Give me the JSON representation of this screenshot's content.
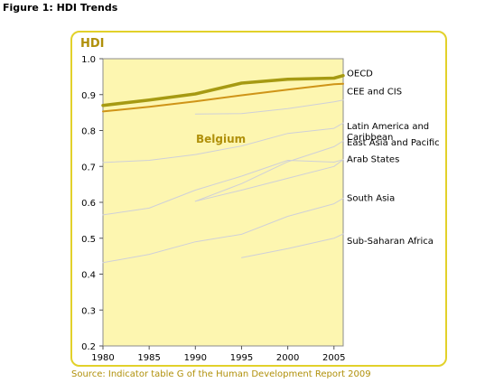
{
  "figure_title": "Figure 1: HDI Trends",
  "source": "Source: Indicator table G of the Human Development Report 2009",
  "colors": {
    "frame": "#e2d12a",
    "plot_bg": "#fdf6b0",
    "accent_text": "#b0900a",
    "oecd": "#a69a12",
    "belgium": "#cf9418",
    "regions": "#cfd0d8"
  },
  "chart_data": {
    "type": "line",
    "title": "HDI",
    "annotation": "Belgium",
    "xlim": [
      1980,
      2006
    ],
    "ylim": [
      0.2,
      1.0
    ],
    "x_ticks": [
      "1980",
      "1985",
      "1990",
      "1995",
      "2000",
      "2005"
    ],
    "y_ticks": [
      "0.2",
      "0.3",
      "0.4",
      "0.5",
      "0.6",
      "0.7",
      "0.8",
      "0.9",
      "1.0"
    ],
    "grid": false,
    "series": [
      {
        "name": "OECD",
        "emphasis": "oecd",
        "labels": [
          "OECD"
        ],
        "label_y": 0.958,
        "points": [
          [
            1980,
            0.87
          ],
          [
            1985,
            0.885
          ],
          [
            1990,
            0.902
          ],
          [
            1995,
            0.932
          ],
          [
            2000,
            0.943
          ],
          [
            2005,
            0.946
          ],
          [
            2006,
            0.953
          ]
        ]
      },
      {
        "name": "Belgium",
        "emphasis": "belgium",
        "labels": [],
        "label_y": null,
        "points": [
          [
            1980,
            0.853
          ],
          [
            1985,
            0.866
          ],
          [
            1990,
            0.881
          ],
          [
            1995,
            0.898
          ],
          [
            2000,
            0.914
          ],
          [
            2005,
            0.929
          ],
          [
            2006,
            0.93
          ]
        ]
      },
      {
        "name": "CEE and CIS",
        "emphasis": "region",
        "labels": [
          "CEE and CIS"
        ],
        "label_y": 0.908,
        "points": [
          [
            1990,
            0.846
          ],
          [
            1995,
            0.847
          ],
          [
            2000,
            0.861
          ],
          [
            2005,
            0.88
          ],
          [
            2006,
            0.885
          ]
        ]
      },
      {
        "name": "Latin America and Caribbean",
        "emphasis": "region",
        "labels": [
          "Latin America and",
          "Caribbean"
        ],
        "label_y": 0.811,
        "points": [
          [
            1980,
            0.711
          ],
          [
            1985,
            0.717
          ],
          [
            1990,
            0.733
          ],
          [
            1995,
            0.757
          ],
          [
            2000,
            0.792
          ],
          [
            2005,
            0.806
          ],
          [
            2006,
            0.821
          ]
        ]
      },
      {
        "name": "East Asia and Pacific",
        "emphasis": "region",
        "labels": [
          "East Asia and Pacific"
        ],
        "label_y": 0.766,
        "points": [
          [
            1990,
            0.603
          ],
          [
            1995,
            0.652
          ],
          [
            2000,
            0.713
          ],
          [
            2005,
            0.755
          ],
          [
            2006,
            0.771
          ]
        ]
      },
      {
        "name": "Arab States",
        "emphasis": "region",
        "labels": [
          "Arab States"
        ],
        "label_y": 0.72,
        "points": [
          [
            1980,
            0.565
          ],
          [
            1985,
            0.584
          ],
          [
            1990,
            0.634
          ],
          [
            1995,
            0.673
          ],
          [
            2000,
            0.717
          ],
          [
            2005,
            0.712
          ],
          [
            2006,
            0.719
          ]
        ]
      },
      {
        "name": "Arab States (lower)",
        "emphasis": "region",
        "labels": [],
        "label_y": null,
        "points": [
          [
            1990,
            0.603
          ],
          [
            1995,
            0.634
          ],
          [
            2000,
            0.667
          ],
          [
            2005,
            0.7
          ],
          [
            2006,
            0.719
          ]
        ]
      },
      {
        "name": "South Asia",
        "emphasis": "region",
        "labels": [
          "South Asia"
        ],
        "label_y": 0.611,
        "points": [
          [
            1980,
            0.432
          ],
          [
            1985,
            0.455
          ],
          [
            1990,
            0.49
          ],
          [
            1995,
            0.511
          ],
          [
            2000,
            0.561
          ],
          [
            2005,
            0.596
          ],
          [
            2006,
            0.611
          ]
        ]
      },
      {
        "name": "Sub-Saharan Africa",
        "emphasis": "region",
        "labels": [
          "Sub-Saharan Africa"
        ],
        "label_y": 0.492,
        "points": [
          [
            1995,
            0.446
          ],
          [
            2000,
            0.471
          ],
          [
            2005,
            0.5
          ],
          [
            2006,
            0.512
          ]
        ]
      }
    ]
  }
}
